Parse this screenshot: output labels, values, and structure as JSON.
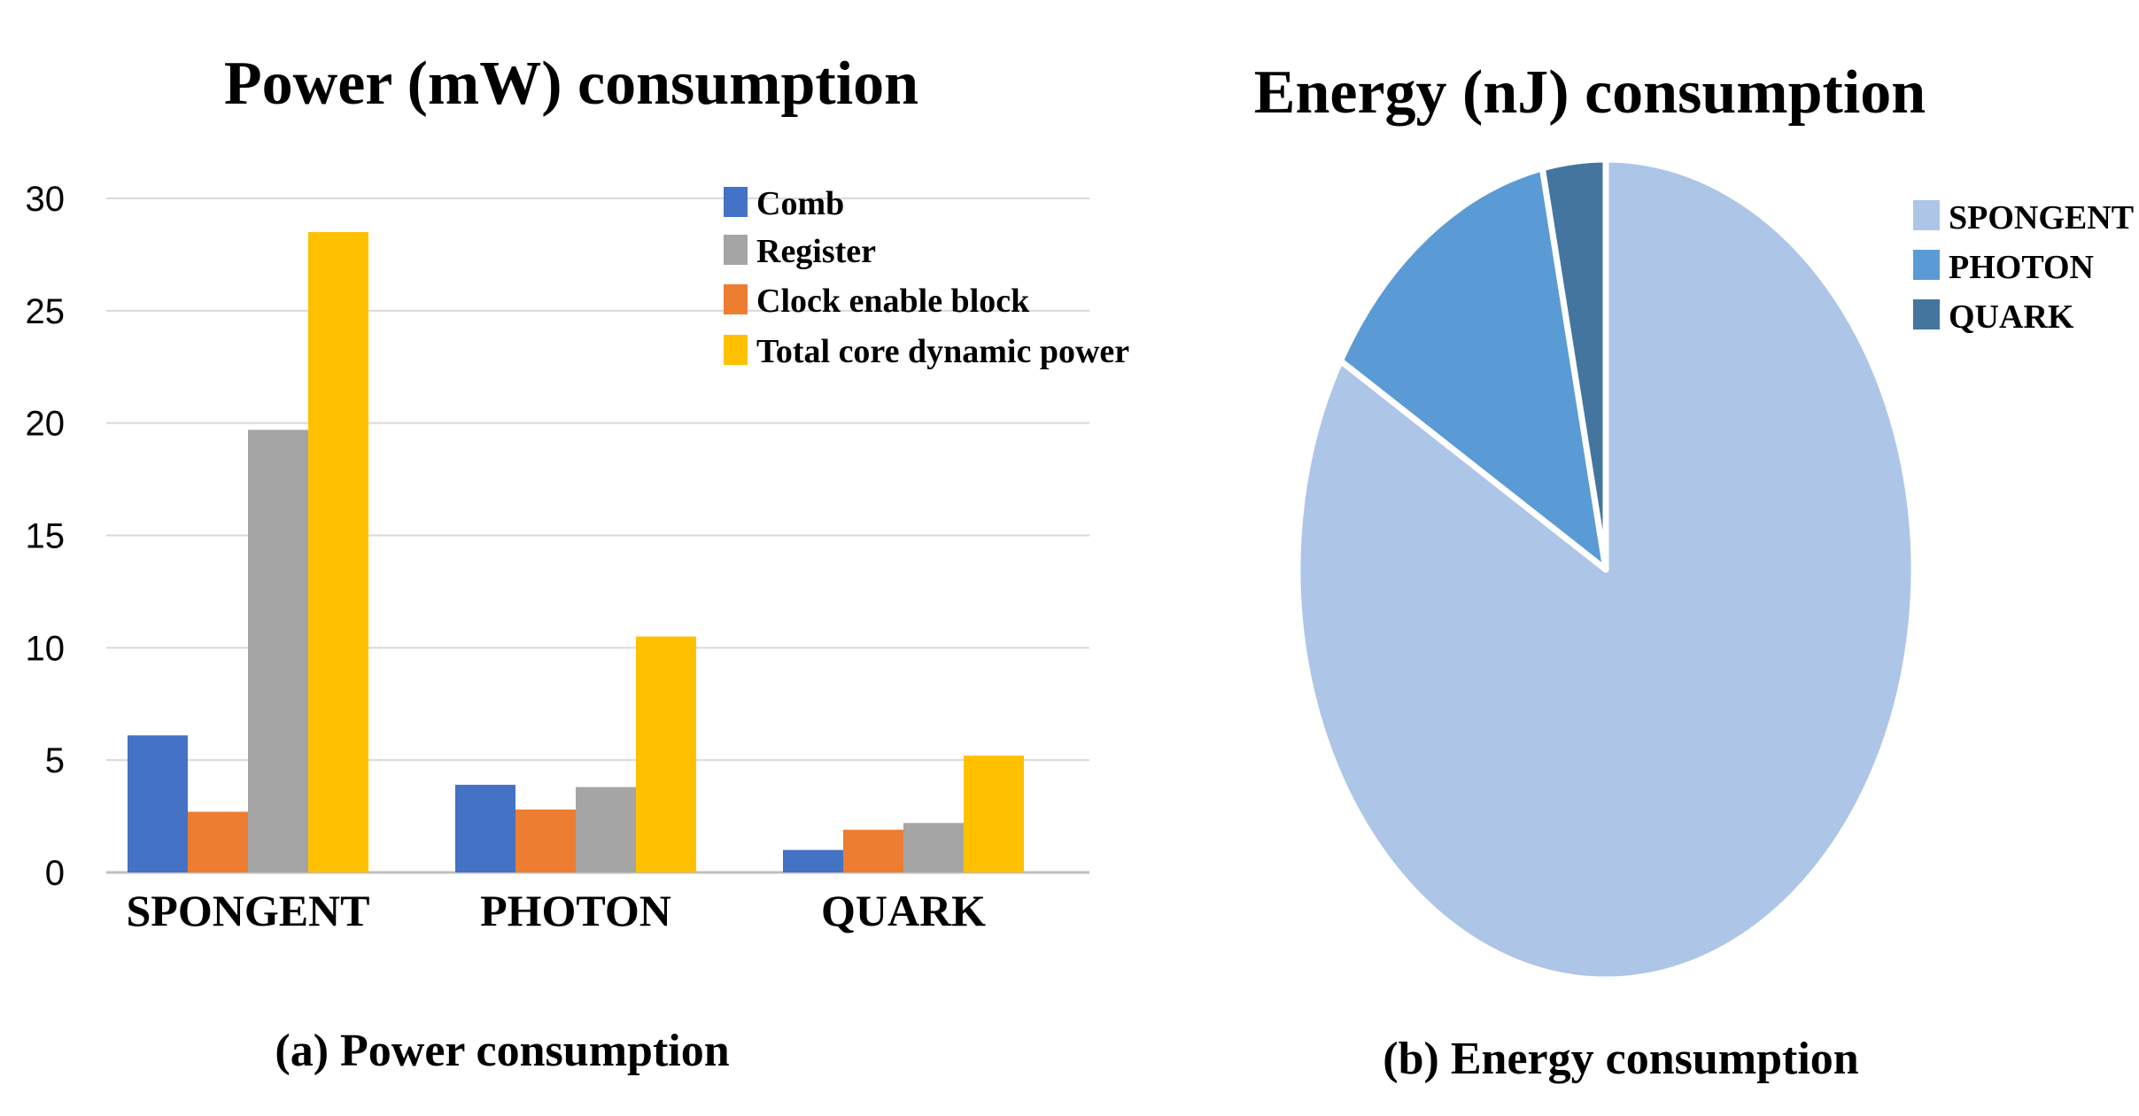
{
  "chart_data": [
    {
      "type": "bar",
      "title": "Power (mW) consumption",
      "caption": "(a) Power consumption",
      "xlabel": "",
      "ylabel": "",
      "ylim": [
        0,
        30
      ],
      "yticks": [
        0,
        5,
        10,
        15,
        20,
        25,
        30
      ],
      "grid": true,
      "legend_position": "top-right",
      "categories": [
        "SPONGENT",
        "PHOTON",
        "QUARK"
      ],
      "series": [
        {
          "name": "Comb",
          "color": "#4472C4",
          "values": [
            6.1,
            3.9,
            1.0
          ]
        },
        {
          "name": "Clock enable block",
          "color": "#ED7D31",
          "values": [
            2.7,
            2.8,
            1.9
          ]
        },
        {
          "name": "Register",
          "color": "#A5A5A5",
          "values": [
            19.7,
            3.8,
            2.2
          ]
        },
        {
          "name": "Total core dynamic power",
          "color": "#FFC000",
          "values": [
            28.5,
            10.5,
            5.2
          ]
        }
      ],
      "legend_order": [
        "Comb",
        "Register",
        "Clock enable block",
        "Total core dynamic power"
      ]
    },
    {
      "type": "pie",
      "title": "Energy (nJ) consumption",
      "caption": "(b) Energy consumption",
      "legend_position": "right",
      "slices": [
        {
          "label": "SPONGENT",
          "value": 83.5,
          "color": "#ADC5E7"
        },
        {
          "label": "PHOTON",
          "value": 13.2,
          "color": "#5B9BD5"
        },
        {
          "label": "QUARK",
          "value": 3.3,
          "color": "#44759F"
        }
      ]
    }
  ]
}
